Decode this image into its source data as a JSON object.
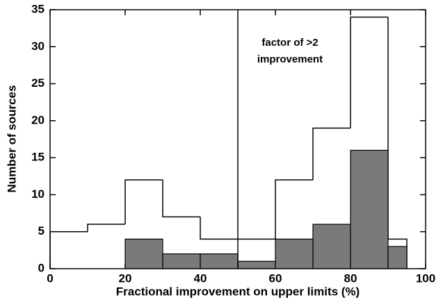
{
  "chart_data": {
    "type": "histogram",
    "xlabel": "Fractional improvement on upper limits (%)",
    "ylabel": "Number of sources",
    "annotation": [
      "factor of >2",
      "improvement"
    ],
    "reference_line_x": 50,
    "bins": [
      0,
      10,
      20,
      30,
      40,
      50,
      60,
      70,
      80,
      90,
      95
    ],
    "series": [
      {
        "style": "outline",
        "color": "#000000",
        "values": [
          5,
          6,
          12,
          7,
          4,
          4,
          12,
          19,
          34,
          4
        ]
      },
      {
        "style": "filled",
        "color": "#7a7a7a",
        "values": [
          0,
          0,
          4,
          2,
          2,
          1,
          4,
          6,
          16,
          3
        ]
      }
    ],
    "xlim": [
      0,
      100
    ],
    "xticks": [
      0,
      20,
      40,
      60,
      80,
      100
    ],
    "ylim": [
      0,
      35
    ],
    "yticks": [
      0,
      5,
      10,
      15,
      20,
      25,
      30,
      35
    ]
  }
}
